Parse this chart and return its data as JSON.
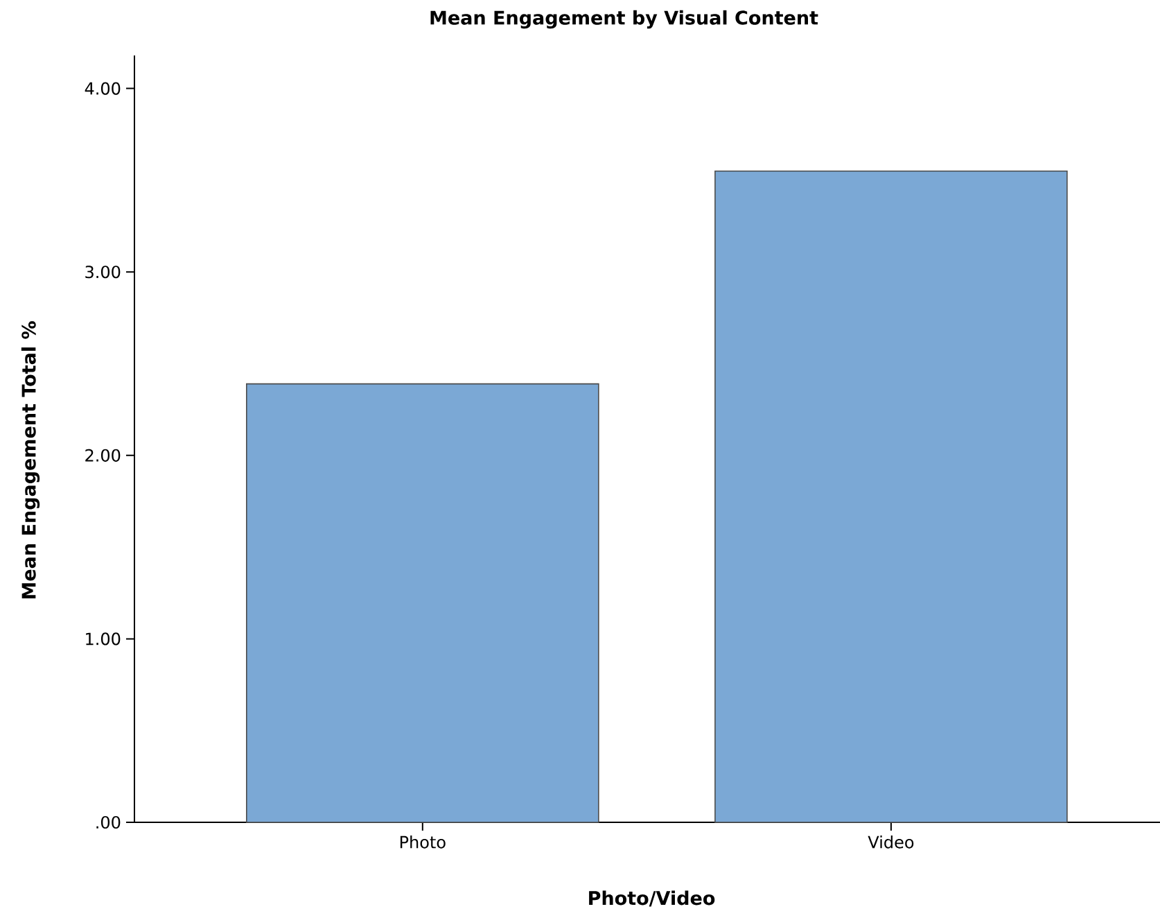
{
  "chart_data": {
    "type": "bar",
    "title": "Mean Engagement by Visual Content",
    "xlabel": "Photo/Video",
    "ylabel": "Mean Engagement Total %",
    "categories": [
      "Photo",
      "Video"
    ],
    "values": [
      2.39,
      3.55
    ],
    "color": "#7ba8d5",
    "ylim": [
      0,
      4.18
    ],
    "yticks": [
      {
        "value": 0,
        "label": ".00"
      },
      {
        "value": 1,
        "label": "1.00"
      },
      {
        "value": 2,
        "label": "2.00"
      },
      {
        "value": 3,
        "label": "3.00"
      },
      {
        "value": 4,
        "label": "4.00"
      }
    ],
    "grid": false
  }
}
